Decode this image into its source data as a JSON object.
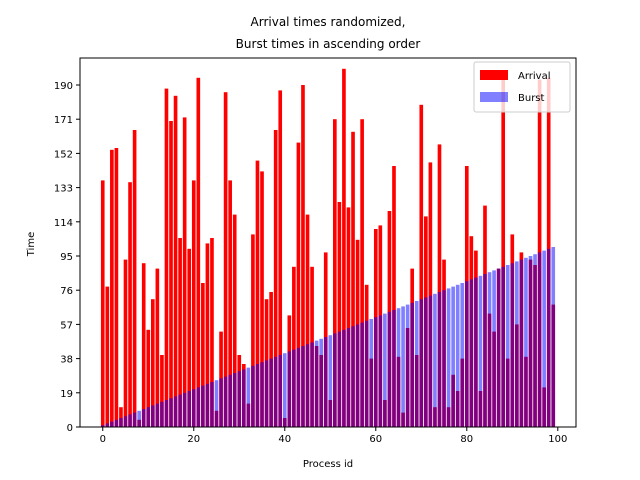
{
  "chart_data": {
    "type": "bar",
    "title_line1": "Arrival times randomized,",
    "title_line2": "Burst times in ascending order",
    "xlabel": "Process id",
    "ylabel": "Time",
    "xlim": [
      -5,
      104
    ],
    "ylim": [
      0,
      205
    ],
    "xticks": [
      0,
      20,
      40,
      60,
      80,
      100
    ],
    "yticks": [
      0,
      19,
      38,
      57,
      76,
      95,
      114,
      133,
      152,
      171,
      190
    ],
    "legend_position": "top-right",
    "colors": {
      "arrival": "#ff0000",
      "burst": "#0000ff",
      "burst_alpha": 0.5
    },
    "series": [
      {
        "name": "Arrival",
        "values": [
          137,
          78,
          154,
          155,
          11,
          93,
          136,
          165,
          4,
          91,
          54,
          71,
          88,
          40,
          188,
          170,
          184,
          105,
          172,
          99,
          137,
          194,
          80,
          102,
          105,
          9,
          53,
          186,
          137,
          118,
          40,
          35,
          13,
          107,
          148,
          142,
          71,
          75,
          165,
          187,
          5,
          62,
          89,
          158,
          190,
          118,
          89,
          45,
          40,
          97,
          15,
          171,
          125,
          199,
          122,
          164,
          104,
          171,
          79,
          38,
          110,
          112,
          15,
          120,
          145,
          39,
          8,
          55,
          88,
          40,
          179,
          117,
          147,
          11,
          157,
          93,
          11,
          29,
          20,
          38,
          145,
          106,
          98,
          20,
          123,
          63,
          53,
          88,
          194,
          38,
          107,
          57,
          97,
          39,
          93,
          90,
          193,
          22,
          194,
          68
        ]
      },
      {
        "name": "Burst",
        "values": [
          1,
          2,
          3,
          4,
          5,
          6,
          7,
          8,
          9,
          10,
          11,
          12,
          13,
          14,
          15,
          16,
          17,
          18,
          19,
          20,
          21,
          22,
          23,
          24,
          25,
          26,
          27,
          28,
          29,
          30,
          31,
          32,
          33,
          34,
          35,
          36,
          37,
          38,
          39,
          40,
          41,
          42,
          43,
          44,
          45,
          46,
          47,
          48,
          49,
          50,
          51,
          52,
          53,
          54,
          55,
          56,
          57,
          58,
          59,
          60,
          61,
          62,
          63,
          64,
          65,
          66,
          67,
          68,
          69,
          70,
          71,
          72,
          73,
          74,
          75,
          76,
          77,
          78,
          79,
          80,
          81,
          82,
          83,
          84,
          85,
          86,
          87,
          88,
          89,
          90,
          91,
          92,
          93,
          94,
          95,
          96,
          97,
          98,
          99,
          100
        ]
      }
    ]
  }
}
